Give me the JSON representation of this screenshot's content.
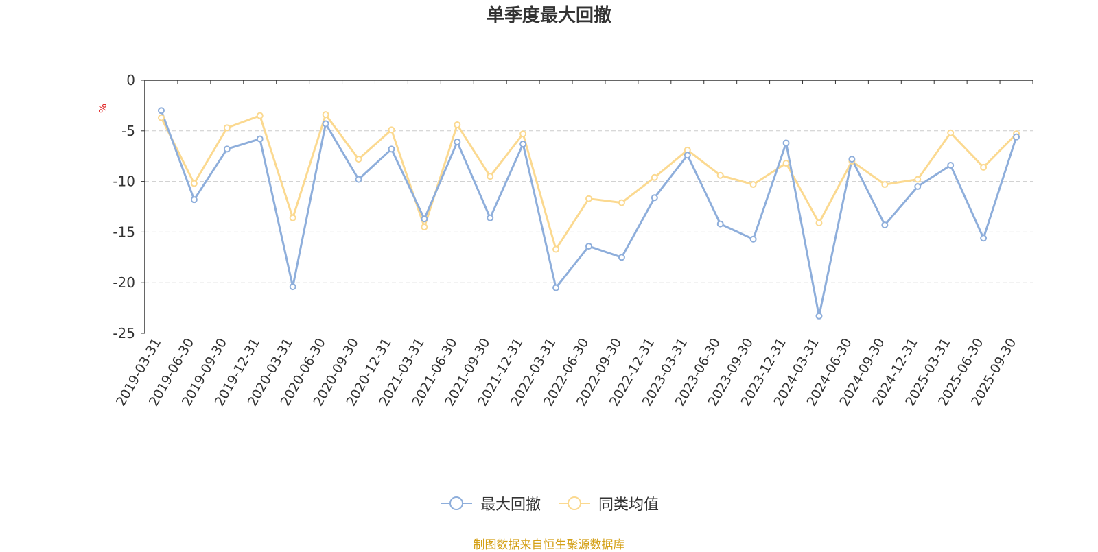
{
  "page": {
    "title": "单季度最大回撤",
    "source_note": "制图数据来自恒生聚源数据库"
  },
  "colors": {
    "series1": "#8eaedb",
    "series2": "#fbd990",
    "grid": "#cccccc",
    "axis": "#333333",
    "unit": "#e02020",
    "source": "#d4a017"
  },
  "chart_data": {
    "type": "line",
    "title": "单季度最大回撤",
    "ylabel": "%",
    "xlabel": "",
    "ylim": [
      -25,
      0
    ],
    "yticks": [
      0,
      -5,
      -10,
      -15,
      -20,
      -25
    ],
    "grid": true,
    "legend_position": "bottom-center",
    "categories": [
      "2019-03-31",
      "2019-06-30",
      "2019-09-30",
      "2019-12-31",
      "2020-03-31",
      "2020-06-30",
      "2020-09-30",
      "2020-12-31",
      "2021-03-31",
      "2021-06-30",
      "2021-09-30",
      "2021-12-31",
      "2022-03-31",
      "2022-06-30",
      "2022-09-30",
      "2022-12-31",
      "2023-03-31",
      "2023-06-30",
      "2023-09-30",
      "2023-12-31",
      "2024-03-31",
      "2024-06-30",
      "2024-09-30",
      "2024-12-31",
      "2025-03-31",
      "2025-06-30",
      "2025-09-30"
    ],
    "series": [
      {
        "name": "最大回撤",
        "color": "#8eaedb",
        "values": [
          -3.0,
          -11.8,
          -6.8,
          -5.8,
          -20.4,
          -4.3,
          -9.8,
          -6.8,
          -13.7,
          -6.1,
          -13.6,
          -6.3,
          -20.5,
          -16.4,
          -17.5,
          -11.6,
          -7.4,
          -14.2,
          -15.7,
          -6.2,
          -23.3,
          -7.8,
          -14.3,
          -10.5,
          -8.4,
          -15.6,
          -5.6
        ]
      },
      {
        "name": "同类均值",
        "color": "#fbd990",
        "values": [
          -3.7,
          -10.2,
          -4.7,
          -3.5,
          -13.6,
          -3.4,
          -7.8,
          -4.9,
          -14.5,
          -4.4,
          -9.5,
          -5.3,
          -16.7,
          -11.7,
          -12.1,
          -9.6,
          -6.9,
          -9.4,
          -10.3,
          -8.2,
          -14.1,
          -8.0,
          -10.3,
          -9.8,
          -5.2,
          -8.6,
          -5.3
        ]
      }
    ]
  }
}
